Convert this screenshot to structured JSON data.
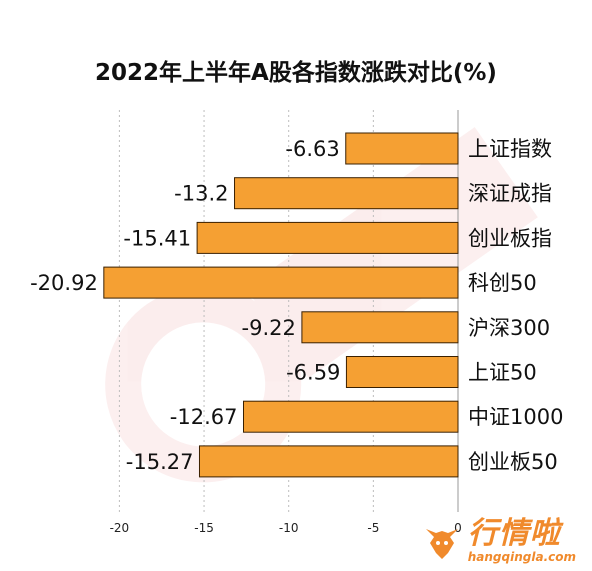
{
  "chart_data": {
    "type": "bar",
    "orientation": "horizontal",
    "title": "2022年上半年A股各指数涨跌对比(%)",
    "categories": [
      "上证指数",
      "深证成指",
      "创业板指",
      "科创50",
      "沪深300",
      "上证50",
      "中证1000",
      "创业板50"
    ],
    "values": [
      -6.63,
      -13.2,
      -15.41,
      -20.92,
      -9.22,
      -6.59,
      -12.67,
      -15.27
    ],
    "value_labels": [
      "-6.63",
      "-13.2",
      "-15.41",
      "-20.92",
      "-9.22",
      "-6.59",
      "-12.67",
      "-15.27"
    ],
    "xlim": [
      -21,
      0
    ],
    "xticks": [
      -20,
      -15,
      -10,
      -5,
      0
    ],
    "xtick_labels": [
      "-20",
      "-15",
      "-10",
      "-5",
      "0"
    ],
    "grid": "vertical dashed",
    "bar_color": "#f5a033",
    "bar_edge_color": "#3a2000"
  },
  "brand": {
    "name": "行情啦",
    "url": "hangqingla.com",
    "color": "#f08a2c"
  }
}
